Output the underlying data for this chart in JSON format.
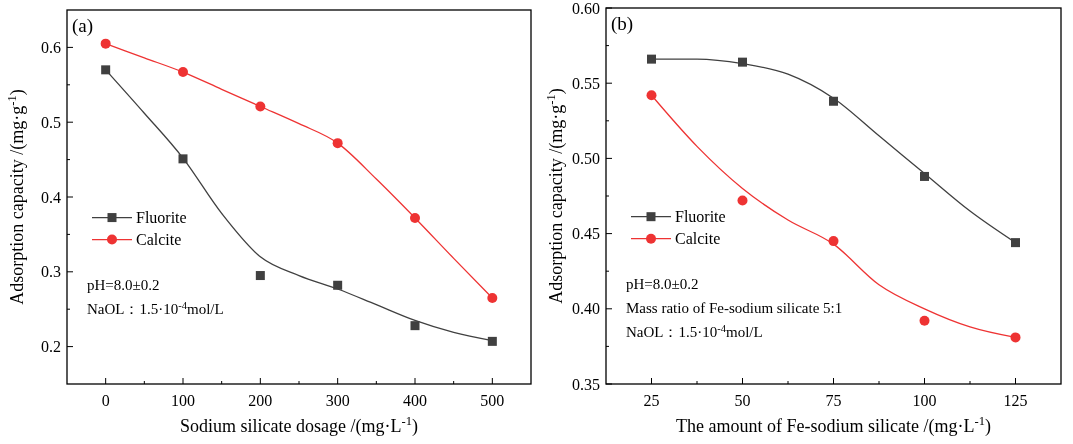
{
  "chart_data": [
    {
      "type": "scatter",
      "xlabel": "Sodium silicate dosage /(mg·L$^{-1}$)",
      "ylabel": "Adsorption capacity /(mg·g$^{-1}$)",
      "annotations": [
        "(a)",
        "pH=8.0±0.2",
        "NaOL：1.5·10$^{-4}$mol/L"
      ],
      "x": [
        0,
        100,
        200,
        300,
        400,
        500
      ],
      "series": [
        {
          "name": "Fluorite",
          "color": "#404040",
          "marker": "square",
          "values": [
            0.57,
            0.451,
            0.295,
            0.282,
            0.228,
            0.207
          ]
        },
        {
          "name": "Calcite",
          "color": "#ee3333",
          "marker": "circle",
          "values": [
            0.605,
            0.567,
            0.521,
            0.472,
            0.372,
            0.265
          ]
        },
        {
          "type": "line",
          "color": "#404040",
          "x": [
            0,
            50,
            100,
            150,
            200,
            250,
            300,
            350,
            400,
            450,
            500
          ],
          "values": [
            0.57,
            0.512,
            0.452,
            0.378,
            0.32,
            0.295,
            0.277,
            0.256,
            0.235,
            0.219,
            0.208
          ]
        },
        {
          "type": "line",
          "color": "#ee3333",
          "x": [
            0,
            50,
            100,
            150,
            200,
            250,
            300,
            350,
            400,
            450,
            500
          ],
          "values": [
            0.605,
            0.586,
            0.567,
            0.544,
            0.521,
            0.498,
            0.472,
            0.424,
            0.372,
            0.318,
            0.265
          ]
        }
      ],
      "xlim": [
        -50,
        550
      ],
      "xticks": [
        0,
        {
          "value": 50,
          "label": null
        },
        100,
        {
          "value": 150,
          "label": null
        },
        200,
        {
          "value": 250,
          "label": null
        },
        300,
        {
          "value": 350,
          "label": null
        },
        400,
        {
          "value": 450,
          "label": null
        },
        500
      ],
      "ylim": [
        0.15,
        0.65
      ],
      "yticks": [
        0.2,
        {
          "value": 0.25,
          "label": null
        },
        0.3,
        {
          "value": 0.35,
          "label": null
        },
        0.4,
        {
          "value": 0.45,
          "label": null
        },
        0.5,
        {
          "value": 0.55,
          "label": null
        },
        0.6
      ],
      "grid": false,
      "legend": "left"
    },
    {
      "type": "scatter",
      "xlabel": "The amount of Fe-sodium silicate /(mg·L$^{-1}$)",
      "ylabel": "Adsorption capacity /(mg·g$^{-1}$)",
      "annotations": [
        "(b)",
        "pH=8.0±0.2",
        "Mass ratio of Fe-sodium silicate 5:1",
        "NaOL：1.5·10$^{-4}$mol/L"
      ],
      "x": [
        25,
        50,
        75,
        100,
        125
      ],
      "series": [
        {
          "name": "Fluorite",
          "color": "#404040",
          "marker": "square",
          "values": [
            0.566,
            0.564,
            0.538,
            0.488,
            0.444
          ]
        },
        {
          "name": "Calcite",
          "color": "#ee3333",
          "marker": "circle",
          "values": [
            0.542,
            0.472,
            0.445,
            0.392,
            0.381
          ]
        },
        {
          "type": "line",
          "color": "#404040",
          "x": [
            25,
            37.5,
            50,
            62.5,
            75,
            87.5,
            100,
            112.5,
            125
          ],
          "values": [
            0.566,
            0.566,
            0.563,
            0.556,
            0.54,
            0.515,
            0.49,
            0.465,
            0.444
          ]
        },
        {
          "type": "line",
          "color": "#ee3333",
          "x": [
            25,
            37.5,
            50,
            62.5,
            75,
            87.5,
            100,
            112.5,
            125
          ],
          "values": [
            0.542,
            0.508,
            0.48,
            0.459,
            0.443,
            0.416,
            0.4,
            0.388,
            0.381
          ]
        }
      ],
      "xlim": [
        12.5,
        137.5
      ],
      "xticks": [
        25,
        {
          "value": 37.5,
          "label": null
        },
        50,
        {
          "value": 62.5,
          "label": null
        },
        75,
        {
          "value": 87.5,
          "label": null
        },
        100,
        {
          "value": 112.5,
          "label": null
        },
        125
      ],
      "ylim": [
        0.35,
        0.6
      ],
      "yticks": [
        "0.35",
        {
          "value": 0.375,
          "label": null
        },
        {
          "value": 0.4,
          "label": "0.40"
        },
        {
          "value": 0.425,
          "label": null
        },
        "0.45",
        {
          "value": 0.475,
          "label": null
        },
        {
          "value": 0.5,
          "label": "0.50"
        },
        {
          "value": 0.525,
          "label": null
        },
        "0.55",
        {
          "value": 0.575,
          "label": null
        },
        {
          "value": 0.6,
          "label": "0.60"
        }
      ],
      "grid": false,
      "legend": "left"
    }
  ]
}
